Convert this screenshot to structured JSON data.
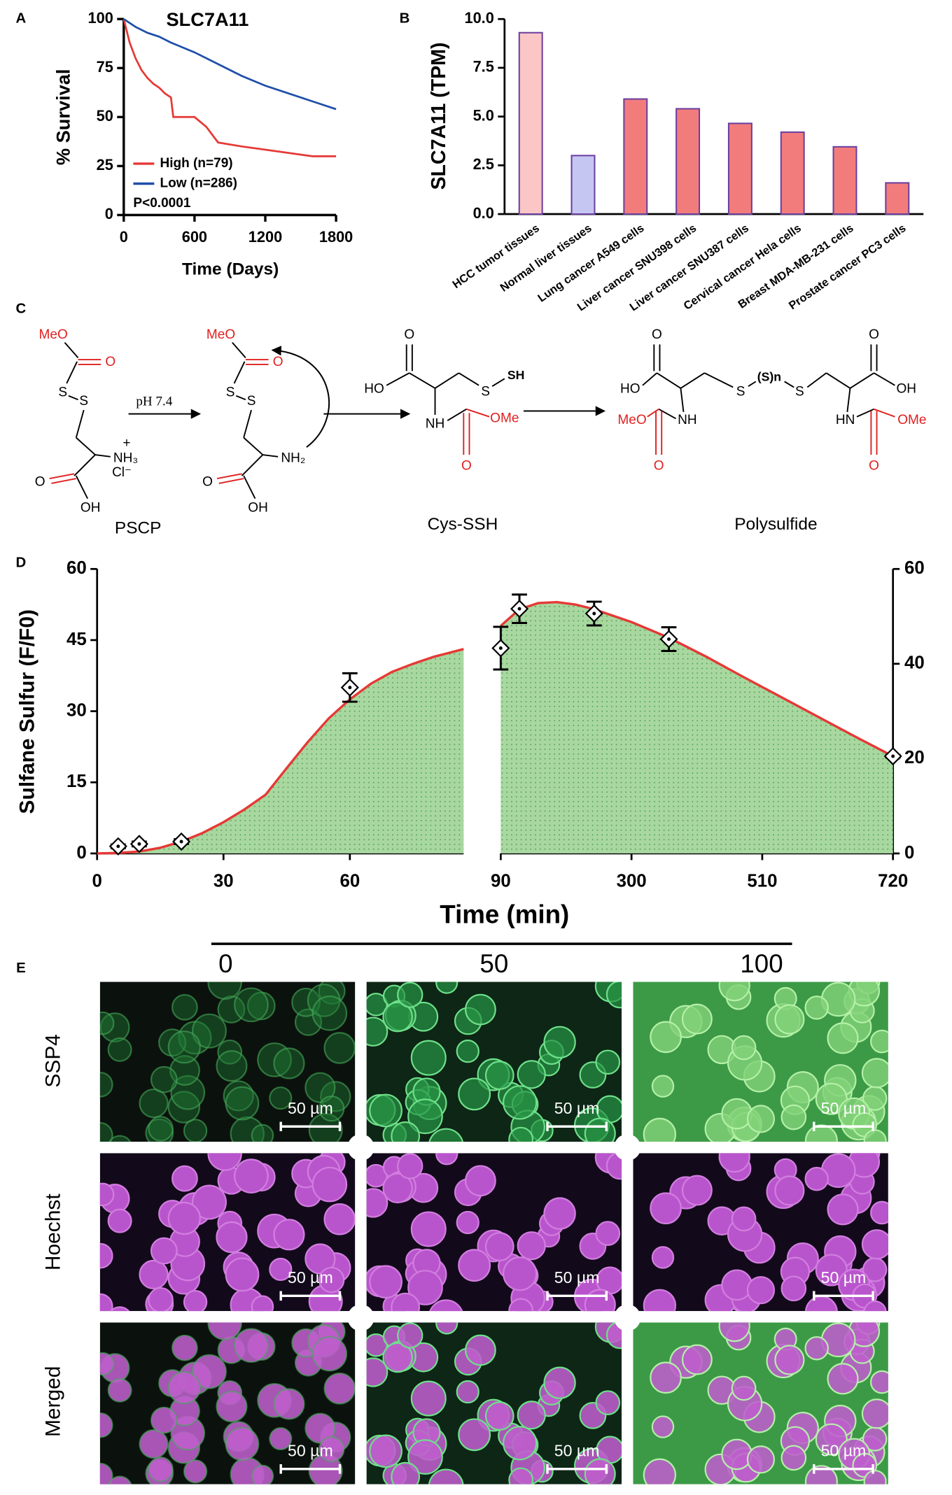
{
  "chart_data": [
    {
      "panel": "A",
      "type": "line",
      "title": "SLC7A11",
      "xlabel": "Time (Days)",
      "ylabel": "% Survival",
      "xlim": [
        0,
        1800
      ],
      "xticks": [
        0,
        600,
        1200,
        1800
      ],
      "ylim": [
        0,
        100
      ],
      "yticks": [
        0,
        25,
        50,
        75,
        100
      ],
      "legend": "lower left",
      "annotation": "P<0.0001",
      "series": [
        {
          "name": "High (n=79)",
          "color": "#e53935",
          "x": [
            0,
            50,
            100,
            150,
            200,
            250,
            300,
            350,
            400,
            420,
            600,
            700,
            800,
            1000,
            1600,
            1800
          ],
          "values": [
            100,
            88,
            80,
            74,
            70,
            67,
            65,
            62,
            60,
            50,
            50,
            45,
            37,
            35,
            30,
            30
          ]
        },
        {
          "name": "Low (n=286)",
          "color": "#1e4fa8",
          "x": [
            0,
            100,
            200,
            300,
            400,
            600,
            800,
            1000,
            1200,
            1400,
            1600,
            1800
          ],
          "values": [
            100,
            96,
            93,
            91,
            88,
            83,
            77,
            71,
            66,
            62,
            58,
            54
          ]
        }
      ]
    },
    {
      "panel": "B",
      "type": "bar",
      "ylabel": "SLC7A11 (TPM)",
      "categories": [
        "HCC tumor tissues",
        "Normal liver tissues",
        "Lung cancer A549 cells",
        "Liver cancer SNU398 cells",
        "Liver cancer SNU387 cells",
        "Cervical cancer Hela cells",
        "Breast MDA-MB-231 cells",
        "Prostate cancer PC3 cells"
      ],
      "values": [
        9.3,
        3.0,
        5.9,
        5.4,
        4.65,
        4.2,
        3.45,
        1.6
      ],
      "colors": [
        "#fbc6c6",
        "#c6c6f2",
        "#f27c7c",
        "#f27c7c",
        "#f27c7c",
        "#f27c7c",
        "#f27c7c",
        "#f27c7c"
      ],
      "edge_color": "#6a3fa0",
      "ylim": [
        0,
        10
      ],
      "yticks": [
        {
          "value": 0,
          "label": "0.0"
        },
        {
          "value": 2.5,
          "label": "2.5"
        },
        {
          "value": 5,
          "label": "5.0"
        },
        {
          "value": 7.5,
          "label": "7.5"
        },
        {
          "value": 10,
          "label": "10.0"
        }
      ]
    },
    {
      "panel": "D",
      "type": "scatter",
      "ylabel": "Sulfane Sulfur (F/F0)",
      "xlabel": "Time (min)",
      "y_axis": "left",
      "xlim": [
        0,
        87
      ],
      "xticks": [
        0,
        30,
        60
      ],
      "ylim": [
        0,
        60
      ],
      "yticks": [
        0,
        15,
        30,
        45,
        60
      ],
      "x": [
        5,
        10,
        20,
        60
      ],
      "values": [
        1.5,
        2,
        2.5,
        35
      ],
      "errors": [
        0.4,
        0.5,
        0.5,
        3
      ],
      "fit": {
        "color": "#e53935",
        "fill": "#a8d8a0",
        "x": [
          0,
          5,
          10,
          15,
          20,
          25,
          30,
          35,
          40,
          45,
          50,
          55,
          60,
          65,
          70,
          75,
          80,
          87
        ],
        "values": [
          0,
          0.1,
          0.4,
          1.2,
          2.5,
          4.3,
          6.6,
          9.3,
          12.4,
          18,
          23.5,
          28.5,
          32.5,
          35.8,
          38.3,
          40,
          41.5,
          43.1
        ]
      }
    },
    {
      "type": "scatter",
      "y_axis": "right",
      "xlim": [
        90,
        720
      ],
      "xticks": [
        90,
        300,
        510,
        720
      ],
      "ylim": [
        0,
        60
      ],
      "yticks": [
        0,
        20,
        40,
        60
      ],
      "x": [
        90,
        120,
        240,
        360,
        720
      ],
      "values": [
        43.3,
        51.6,
        50.6,
        45.2,
        20.5
      ],
      "errors": [
        4.5,
        3,
        2.5,
        2.5,
        0.3
      ],
      "fit": {
        "color": "#e53935",
        "fill": "#a8d8a0",
        "x": [
          90,
          120,
          150,
          180,
          210,
          240,
          300,
          360,
          420,
          480,
          540,
          600,
          660,
          720
        ],
        "values": [
          48,
          51.5,
          52.8,
          53,
          52.5,
          51.5,
          48.8,
          45.5,
          41.5,
          37.2,
          33,
          28.8,
          24.6,
          20.5
        ]
      }
    }
  ],
  "scheme": {
    "panel": "C",
    "condition": "pH 7.4",
    "compounds": [
      "PSCP",
      "Cys-SSH",
      "Polysulfide"
    ],
    "atoms": [
      "MeO",
      "O",
      "S",
      "S",
      "NH₃",
      "+",
      "Cl⁻",
      "O",
      "OH",
      "MeO",
      "O",
      "S",
      "S",
      "NH₂",
      "O",
      "OH",
      "O",
      "HO",
      "S",
      "SH",
      "NH",
      "OMe",
      "O",
      "O",
      "HO",
      "S",
      "(S)n",
      "S",
      "O",
      "OH",
      "NH",
      "MeO",
      "O",
      "HN",
      "OMe",
      "O"
    ]
  },
  "micrograph": {
    "panel": "E",
    "doses": [
      "0",
      "50",
      "100"
    ],
    "stains": [
      "SSP4",
      "Hoechst",
      "Merged"
    ],
    "scale_bar": "50 µm"
  }
}
